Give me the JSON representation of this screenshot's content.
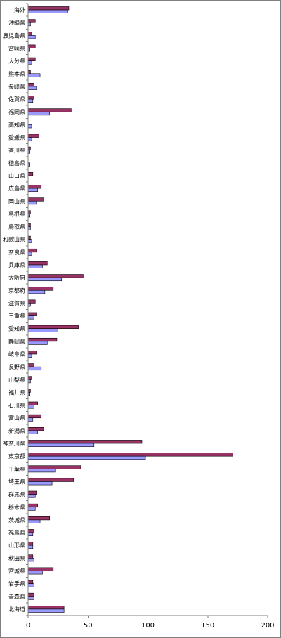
{
  "chart_data": {
    "type": "bar",
    "orientation": "horizontal",
    "title": "",
    "xlabel": "",
    "ylabel": "",
    "xlim": [
      0,
      200
    ],
    "x_ticks": [
      "0",
      "50",
      "100",
      "150",
      "200"
    ],
    "grid": false,
    "legend": "none",
    "categories": [
      "海外",
      "沖縄県",
      "鹿児島県",
      "宮崎県",
      "大分県",
      "熊本県",
      "長崎県",
      "佐賀県",
      "福岡県",
      "高知県",
      "愛媛県",
      "香川県",
      "徳島県",
      "山口県",
      "広島県",
      "岡山県",
      "島根県",
      "鳥取県",
      "和歌山県",
      "奈良県",
      "兵庫県",
      "大阪府",
      "京都府",
      "滋賀県",
      "三重県",
      "愛知県",
      "静岡県",
      "岐阜県",
      "長野県",
      "山梨県",
      "福井県",
      "石川県",
      "富山県",
      "新潟県",
      "神奈川県",
      "東京都",
      "千葉県",
      "埼玉県",
      "群馬県",
      "栃木県",
      "茨城県",
      "福島県",
      "山形県",
      "秋田県",
      "宮城県",
      "岩手県",
      "青森県",
      "北海道"
    ],
    "series": [
      {
        "color": "#993366",
        "values": [
          34,
          6,
          3,
          6,
          6,
          2,
          5,
          5,
          36,
          0,
          9,
          2,
          0,
          4,
          11,
          13,
          2,
          2,
          2,
          7,
          16,
          46,
          21,
          6,
          7,
          42,
          24,
          7,
          5,
          3,
          2,
          8,
          11,
          13,
          95,
          171,
          44,
          38,
          7,
          8,
          18,
          5,
          4,
          4,
          21,
          4,
          5,
          30
        ]
      },
      {
        "color": "#9999ff",
        "values": [
          33,
          2,
          6,
          1,
          3,
          10,
          7,
          4,
          18,
          3,
          3,
          1,
          1,
          0,
          8,
          7,
          1,
          2,
          3,
          3,
          12,
          28,
          14,
          2,
          5,
          25,
          16,
          3,
          11,
          2,
          1,
          5,
          4,
          8,
          55,
          98,
          23,
          20,
          6,
          6,
          10,
          4,
          4,
          5,
          12,
          5,
          5,
          30
        ]
      }
    ]
  }
}
